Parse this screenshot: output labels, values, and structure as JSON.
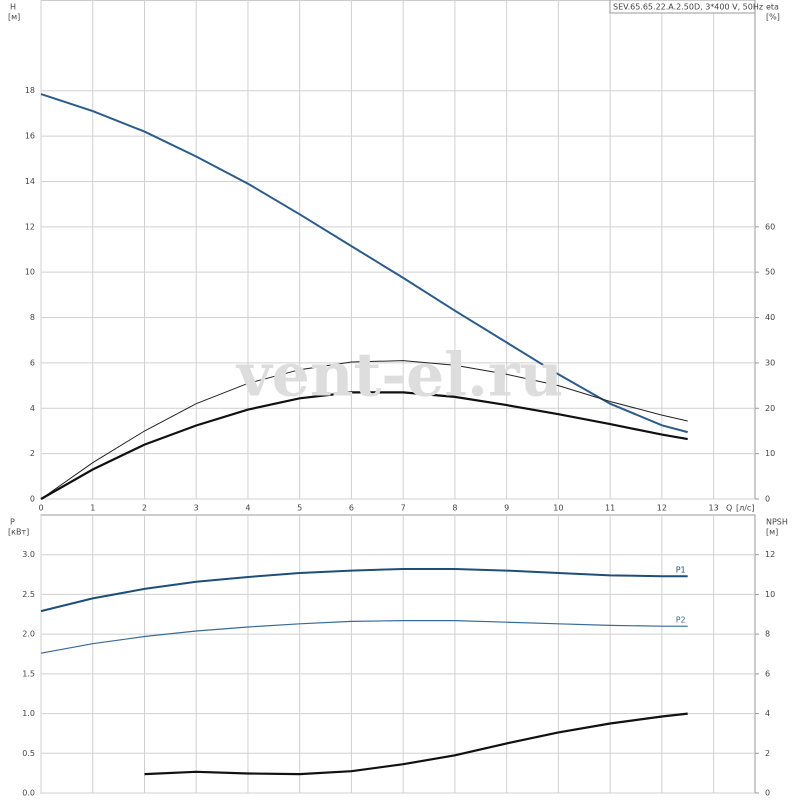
{
  "watermark": "vent-el.ru",
  "chart_data": [
    {
      "type": "line",
      "title": "SEV.65.65.22.A.2.50D, 3*400 V, 50Hz",
      "x_label": "Q",
      "x_unit": "[л/с]",
      "y_label": "H",
      "y_unit": "[м]",
      "y2_label": "eta",
      "y2_unit": "[%]",
      "x": [
        0,
        1,
        2,
        3,
        4,
        5,
        6,
        7,
        8,
        9,
        10,
        11,
        12,
        12.5
      ],
      "xlim": [
        0,
        13.8
      ],
      "xticks": [
        0,
        1,
        2,
        3,
        4,
        5,
        6,
        7,
        8,
        9,
        10,
        11,
        12,
        13
      ],
      "ylim": [
        0,
        22
      ],
      "yticks": [
        0,
        2,
        4,
        6,
        8,
        10,
        12,
        14,
        16,
        18
      ],
      "y2lim": [
        0,
        110
      ],
      "y2ticks": [
        0,
        10,
        20,
        30,
        40,
        50,
        60
      ],
      "grid": true,
      "series": [
        {
          "color": "#2b5c8a",
          "line_width": 2,
          "values": [
            17.85,
            17.1,
            16.2,
            15.1,
            13.9,
            12.55,
            11.15,
            9.75,
            8.3,
            6.9,
            5.5,
            4.2,
            3.25,
            2.95
          ]
        },
        {
          "color": "#222222",
          "line_width": 1,
          "axis": "y2",
          "values": [
            0,
            8,
            15,
            21,
            25.5,
            28.5,
            30.2,
            30.5,
            29.5,
            27.5,
            25,
            21.5,
            18.5,
            17.2
          ]
        },
        {
          "color": "#111111",
          "line_width": 2.2,
          "axis": "y2",
          "values": [
            0,
            6.5,
            12,
            16.2,
            19.7,
            22.2,
            23.5,
            23.5,
            22.5,
            20.7,
            18.7,
            16.5,
            14.2,
            13.2
          ]
        }
      ]
    },
    {
      "type": "line",
      "y_label": "P",
      "y_unit": "[кВт]",
      "y2_label": "NPSH",
      "y2_unit": "[м]",
      "x": [
        0,
        1,
        2,
        3,
        4,
        5,
        6,
        7,
        8,
        9,
        10,
        11,
        12,
        12.5
      ],
      "xlim": [
        0,
        13.8
      ],
      "ylim": [
        0,
        3.5
      ],
      "yticks": [
        {
          "value": 0,
          "label": "0.0"
        },
        0.5,
        {
          "value": 1,
          "label": "1.0"
        },
        1.5,
        {
          "value": 2,
          "label": "2.0"
        },
        2.5,
        {
          "value": 3,
          "label": "3.0"
        }
      ],
      "y2lim": [
        0,
        14
      ],
      "y2ticks": [
        0,
        2,
        4,
        6,
        8,
        10,
        12
      ],
      "grid": true,
      "series": [
        {
          "name": "P1",
          "color": "#1f4e79",
          "line_width": 2,
          "values": [
            2.29,
            2.45,
            2.57,
            2.66,
            2.72,
            2.77,
            2.8,
            2.82,
            2.82,
            2.8,
            2.77,
            2.74,
            2.73,
            2.73
          ]
        },
        {
          "name": "P2",
          "color": "#3a6a98",
          "line_width": 1.2,
          "values": [
            1.76,
            1.88,
            1.97,
            2.04,
            2.09,
            2.13,
            2.16,
            2.17,
            2.17,
            2.15,
            2.13,
            2.11,
            2.1,
            2.1
          ]
        },
        {
          "color": "#111111",
          "line_width": 2.2,
          "axis": "y2",
          "values": [
            null,
            null,
            0.95,
            1.07,
            0.98,
            0.95,
            1.1,
            1.45,
            1.9,
            2.5,
            3.05,
            3.5,
            3.85,
            4.0
          ]
        }
      ]
    }
  ]
}
